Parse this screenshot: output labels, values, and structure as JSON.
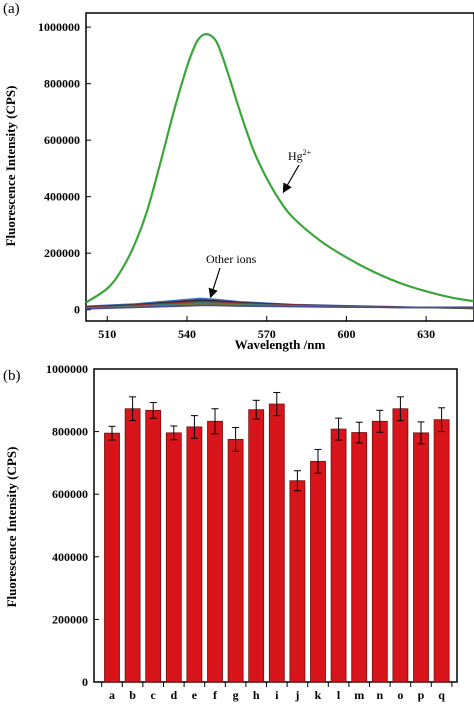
{
  "colors": {
    "hg_line": "#3aa63a",
    "bar_fill": "#d8151b",
    "bar_stroke": "#7a0a0a",
    "axis": "#000000",
    "other_ions": [
      "#3b6cc4",
      "#2a2a2a",
      "#9a2a2a",
      "#2d7f7f",
      "#7a7a2a",
      "#4a4a9a"
    ]
  },
  "chart_data": [
    {
      "type": "line",
      "panel_label": "(a)",
      "title": "",
      "xlabel": "Wavelength /nm",
      "ylabel": "Fluorescence Intensity (CPS)",
      "xlim": [
        502,
        648
      ],
      "ylim": [
        -40000,
        1050000
      ],
      "x_ticks": [
        510,
        540,
        570,
        600,
        630
      ],
      "y_ticks": [
        0,
        200000,
        400000,
        600000,
        800000,
        1000000
      ],
      "annotations": [
        {
          "text": "Hg",
          "superscript": "2+",
          "points_to": "Hg2+"
        },
        {
          "text": "Other ions",
          "points_to": "Other ions"
        }
      ],
      "series": [
        {
          "name": "Hg2+",
          "color_key": "hg_line",
          "x": [
            502,
            510,
            515,
            520,
            525,
            530,
            535,
            540,
            543,
            545,
            547,
            549,
            551,
            553,
            556,
            560,
            565,
            570,
            575,
            580,
            590,
            600,
            610,
            620,
            630,
            640,
            648
          ],
          "y": [
            25000,
            75000,
            135000,
            225000,
            350000,
            520000,
            700000,
            860000,
            935000,
            965000,
            975000,
            970000,
            950000,
            905000,
            820000,
            700000,
            565000,
            465000,
            385000,
            325000,
            245000,
            185000,
            135000,
            95000,
            65000,
            42000,
            30000
          ]
        },
        {
          "name": "Other ions",
          "color_key": "other_ions",
          "x": [
            502,
            520,
            535,
            545,
            550,
            560,
            580,
            600,
            620,
            648
          ],
          "variants_y": [
            [
              12000,
              20000,
              32000,
              40000,
              37000,
              28000,
              18000,
              14000,
              10000,
              4000
            ],
            [
              10000,
              17000,
              27000,
              34000,
              32000,
              25000,
              17000,
              13000,
              9000,
              5000
            ],
            [
              8000,
              15000,
              23000,
              29000,
              28000,
              22000,
              16000,
              12000,
              9000,
              6000
            ],
            [
              6000,
              12000,
              19000,
              24000,
              23000,
              19000,
              14000,
              11000,
              8000,
              7000
            ],
            [
              5000,
              10000,
              15000,
              19000,
              19000,
              16000,
              12000,
              10000,
              8000,
              8000
            ],
            [
              3000,
              8000,
              12000,
              15000,
              15000,
              13000,
              11000,
              9000,
              8000,
              9000
            ]
          ]
        }
      ]
    },
    {
      "type": "bar",
      "panel_label": "(b)",
      "title": "",
      "xlabel": "",
      "ylabel": "Fluorescence Intensity (CPS)",
      "ylim": [
        0,
        1000000
      ],
      "y_ticks": [
        0,
        200000,
        400000,
        600000,
        800000,
        1000000
      ],
      "categories": [
        "a",
        "b",
        "c",
        "d",
        "e",
        "f",
        "g",
        "h",
        "i",
        "j",
        "k",
        "l",
        "m",
        "n",
        "o",
        "p",
        "q"
      ],
      "values": [
        795000,
        873000,
        868000,
        796000,
        815000,
        833000,
        775000,
        870000,
        888000,
        643000,
        705000,
        808000,
        797000,
        833000,
        873000,
        796000,
        838000
      ],
      "errors": [
        22000,
        38000,
        25000,
        22000,
        36000,
        40000,
        38000,
        30000,
        37000,
        32000,
        38000,
        35000,
        33000,
        35000,
        38000,
        35000,
        38000
      ]
    }
  ]
}
